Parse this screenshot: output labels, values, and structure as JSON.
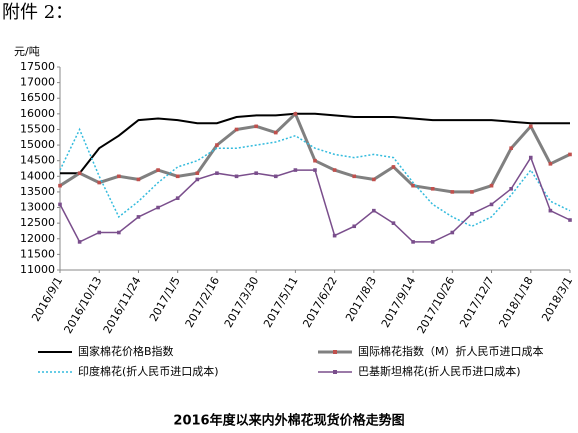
{
  "header": "附件 2：",
  "chart_data": {
    "type": "line",
    "title": "2016年度以来内外棉花现货价格走势图",
    "y_label": "元/吨",
    "x": [
      "2016/9/1",
      "2016/9/22",
      "2016/10/13",
      "2016/11/3",
      "2016/11/24",
      "2016/12/15",
      "2017/1/5",
      "2017/1/26",
      "2017/2/16",
      "2017/3/9",
      "2017/3/30",
      "2017/4/20",
      "2017/5/11",
      "2017/6/1",
      "2017/6/22",
      "2017/7/13",
      "2017/8/3",
      "2017/8/24",
      "2017/9/14",
      "2017/10/5",
      "2017/10/26",
      "2017/11/16",
      "2017/12/7",
      "2017/12/28",
      "2018/1/18",
      "2018/2/8",
      "2018/3/1"
    ],
    "xlim": [
      "2016/9/1",
      "2018/3/1"
    ],
    "xticks": [
      "2016/9/1",
      "2016/10/13",
      "2016/11/24",
      "2017/1/5",
      "2017/2/16",
      "2017/3/30",
      "2017/5/11",
      "2017/6/22",
      "2017/8/3",
      "2017/9/14",
      "2017/10/26",
      "2017/12/7",
      "2018/1/18",
      "2018/3/1"
    ],
    "ylim": [
      11000,
      17500
    ],
    "yticks": [
      11000,
      11500,
      12000,
      12500,
      13000,
      13500,
      14000,
      14500,
      15000,
      15500,
      16000,
      16500,
      17000,
      17500
    ],
    "grid": false,
    "series": [
      {
        "name": "国家棉花价格B指数",
        "color": "#000000",
        "width": 2,
        "values": [
          14100,
          14100,
          14900,
          15300,
          15800,
          15850,
          15800,
          15700,
          15700,
          15900,
          15950,
          15950,
          16000,
          16000,
          15950,
          15900,
          15900,
          15900,
          15850,
          15800,
          15800,
          15800,
          15800,
          15750,
          15700,
          15700,
          15700
        ]
      },
      {
        "name": "国际棉花指数（M）折人民币进口成本",
        "color": "#808080",
        "marker_color": "#c0504d",
        "width": 3,
        "values": [
          13700,
          14100,
          13800,
          14000,
          13900,
          14200,
          14000,
          14100,
          15000,
          15500,
          15600,
          15400,
          16000,
          14500,
          14200,
          14000,
          13900,
          14300,
          13700,
          13600,
          13500,
          13500,
          13700,
          14900,
          15600,
          14400,
          14700
        ]
      },
      {
        "name": "印度棉花(折人民币进口成本)",
        "color": "#33bbdd",
        "dash": true,
        "width": 1.5,
        "values": [
          14200,
          15500,
          14000,
          12700,
          13200,
          13800,
          14300,
          14500,
          14900,
          14900,
          15000,
          15100,
          15300,
          14900,
          14700,
          14600,
          14700,
          14600,
          13800,
          13100,
          12700,
          12400,
          12700,
          13400,
          14200,
          13200,
          12900
        ]
      },
      {
        "name": "巴基斯坦棉花(折人民币进口成本)",
        "color": "#7a4e8c",
        "marker_color": "#7a4e8c",
        "width": 1.5,
        "values": [
          13100,
          11900,
          12200,
          12200,
          12700,
          13000,
          13300,
          13900,
          14100,
          14000,
          14100,
          14000,
          14200,
          14200,
          12100,
          12400,
          12900,
          12500,
          11900,
          11900,
          12200,
          12800,
          13100,
          13600,
          14600,
          12900,
          12600
        ]
      }
    ]
  }
}
